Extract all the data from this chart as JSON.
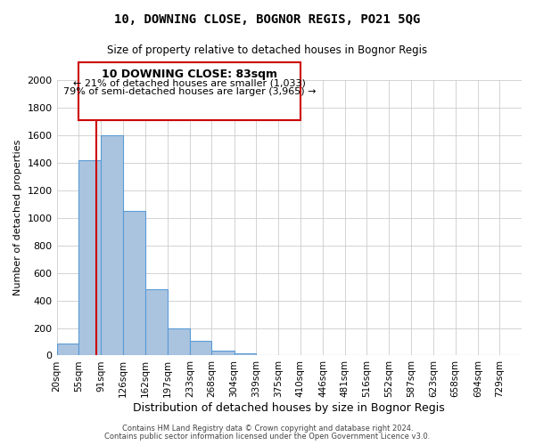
{
  "title": "10, DOWNING CLOSE, BOGNOR REGIS, PO21 5QG",
  "subtitle": "Size of property relative to detached houses in Bognor Regis",
  "xlabel": "Distribution of detached houses by size in Bognor Regis",
  "ylabel": "Number of detached properties",
  "bin_labels": [
    "20sqm",
    "55sqm",
    "91sqm",
    "126sqm",
    "162sqm",
    "197sqm",
    "233sqm",
    "268sqm",
    "304sqm",
    "339sqm",
    "375sqm",
    "410sqm",
    "446sqm",
    "481sqm",
    "516sqm",
    "552sqm",
    "587sqm",
    "623sqm",
    "658sqm",
    "694sqm",
    "729sqm"
  ],
  "bar_heights": [
    85,
    1420,
    1600,
    1050,
    480,
    200,
    105,
    35,
    18,
    0,
    0,
    0,
    0,
    0,
    0,
    0,
    0,
    0,
    0,
    0,
    0
  ],
  "bar_color": "#aac4e0",
  "bar_edge_color": "#5b9bd5",
  "ylim": [
    0,
    2000
  ],
  "yticks": [
    0,
    200,
    400,
    600,
    800,
    1000,
    1200,
    1400,
    1600,
    1800,
    2000
  ],
  "property_line_x": 83,
  "property_line_label": "10 DOWNING CLOSE: 83sqm",
  "annotation_line1": "← 21% of detached houses are smaller (1,033)",
  "annotation_line2": "79% of semi-detached houses are larger (3,965) →",
  "annotation_box_color": "#ffffff",
  "annotation_box_edge": "#cc0000",
  "red_line_color": "#cc0000",
  "footer_line1": "Contains HM Land Registry data © Crown copyright and database right 2024.",
  "footer_line2": "Contains public sector information licensed under the Open Government Licence v3.0.",
  "bin_edges": [
    20,
    55,
    91,
    126,
    162,
    197,
    233,
    268,
    304,
    339,
    375,
    410,
    446,
    481,
    516,
    552,
    587,
    623,
    658,
    694,
    729
  ],
  "background_color": "#ffffff",
  "grid_color": "#cccccc",
  "title_fontsize": 10,
  "subtitle_fontsize": 8.5,
  "ylabel_fontsize": 8,
  "xlabel_fontsize": 9,
  "tick_fontsize": 7.5,
  "ytick_fontsize": 8,
  "annot_title_fontsize": 9,
  "annot_text_fontsize": 8,
  "footer_fontsize": 6,
  "footer_color": "#444444"
}
